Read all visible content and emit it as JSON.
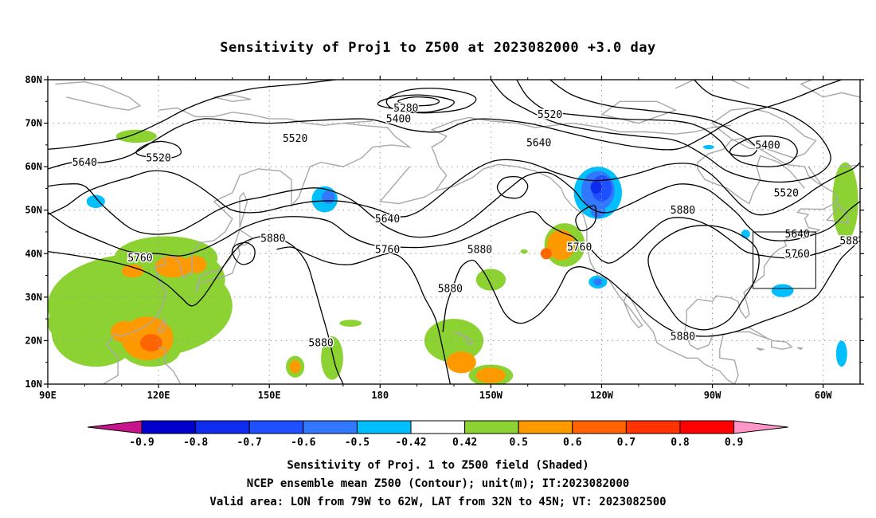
{
  "title": "Sensitivity of Proj1 to Z500 at 2023082000 +3.0 day",
  "map": {
    "lat_labels": [
      "80N",
      "70N",
      "60N",
      "50N",
      "40N",
      "30N",
      "20N",
      "10N"
    ],
    "lon_labels": [
      "90E",
      "120E",
      "150E",
      "180",
      "150W",
      "120W",
      "90W",
      "60W"
    ],
    "lon_range": [
      "90E",
      "50W"
    ],
    "lat_range": [
      "10N",
      "80N"
    ],
    "contour_color": "#000000",
    "coastline_color": "#a8a8a8",
    "grid_lines": "dotted",
    "valid_box": {
      "lon_from": "79W",
      "lon_to": "62W",
      "lat_from": "32N",
      "lat_to": "45N"
    },
    "contour_labels": [
      {
        "text": "5280",
        "lon": -173,
        "lat": 73.5
      },
      {
        "text": "5400",
        "lon": -175,
        "lat": 71
      },
      {
        "text": "5520",
        "lon": -134,
        "lat": 72
      },
      {
        "text": "5520",
        "lon": 157,
        "lat": 66.5
      },
      {
        "text": "5520",
        "lon": 120,
        "lat": 62
      },
      {
        "text": "5640",
        "lon": 100,
        "lat": 61
      },
      {
        "text": "5640",
        "lon": -137,
        "lat": 65.5
      },
      {
        "text": "5400",
        "lon": -75,
        "lat": 65
      },
      {
        "text": "5520",
        "lon": -70,
        "lat": 54
      },
      {
        "text": "5640",
        "lon": -67,
        "lat": 44.5
      },
      {
        "text": "5640",
        "lon": -178,
        "lat": 48
      },
      {
        "text": "5880",
        "lon": 151,
        "lat": 43.5
      },
      {
        "text": "5880",
        "lon": -98,
        "lat": 50
      },
      {
        "text": "5760",
        "lon": -178,
        "lat": 41
      },
      {
        "text": "5880",
        "lon": -153,
        "lat": 41
      },
      {
        "text": "5760",
        "lon": -126,
        "lat": 41.5
      },
      {
        "text": "5760",
        "lon": -67,
        "lat": 40
      },
      {
        "text": "5760",
        "lon": 115,
        "lat": 39
      },
      {
        "text": "5880",
        "lon": -161,
        "lat": 32
      },
      {
        "text": "5880",
        "lon": -98,
        "lat": 21
      },
      {
        "text": "5880",
        "lon": 164,
        "lat": 19.5
      },
      {
        "text": "588",
        "lon": -53,
        "lat": 43
      }
    ]
  },
  "shading": {
    "blobs": [
      {
        "lon": 103,
        "lat": 52,
        "rx": 2.5,
        "ry": 1.5,
        "level": "-0.42"
      },
      {
        "lon": 114,
        "lat": 67,
        "rx": 5.5,
        "ry": 1.5,
        "level": "0.42"
      },
      {
        "lon": 165,
        "lat": 52.5,
        "rx": 3.5,
        "ry": 3,
        "level": "-0.42"
      },
      {
        "lon": 166,
        "lat": 53,
        "rx": 1.8,
        "ry": 1.5,
        "level": "-0.5"
      },
      {
        "lon": -121,
        "lat": 54,
        "rx": 6.5,
        "ry": 6,
        "level": "-0.42"
      },
      {
        "lon": -121,
        "lat": 54.5,
        "rx": 4.5,
        "ry": 4.5,
        "level": "-0.5"
      },
      {
        "lon": -120,
        "lat": 55,
        "rx": 2.8,
        "ry": 3,
        "level": "-0.6"
      },
      {
        "lon": -121.5,
        "lat": 55.3,
        "rx": 1.5,
        "ry": 1.5,
        "level": "-0.7"
      },
      {
        "lon": -121,
        "lat": 49.8,
        "rx": 2,
        "ry": 1.5,
        "level": "-0.5"
      },
      {
        "lon": -130,
        "lat": 42,
        "rx": 5.5,
        "ry": 5,
        "level": "0.42"
      },
      {
        "lon": -131,
        "lat": 42,
        "rx": 3.8,
        "ry": 3.5,
        "level": "0.5"
      },
      {
        "lon": -135,
        "lat": 40,
        "rx": 1.5,
        "ry": 1.3,
        "level": "0.6"
      },
      {
        "lon": -121,
        "lat": 33.5,
        "rx": 2.5,
        "ry": 1.5,
        "level": "-0.42"
      },
      {
        "lon": -121,
        "lat": 33.5,
        "rx": 1.2,
        "ry": 0.8,
        "level": "-0.5"
      },
      {
        "lon": -150,
        "lat": 34,
        "rx": 4,
        "ry": 2.5,
        "level": "0.42"
      },
      {
        "lon": -150,
        "lat": 34,
        "rx": 4,
        "ry": 2.5,
        "level": "0.42"
      },
      {
        "lon": -71,
        "lat": 31.5,
        "rx": 3,
        "ry": 1.5,
        "level": "-0.42"
      },
      {
        "lon": -81,
        "lat": 44.5,
        "rx": 1.2,
        "ry": 1,
        "level": "-0.42"
      },
      {
        "lon": -91,
        "lat": 64.5,
        "rx": 1.5,
        "ry": 0.5,
        "level": "-0.42"
      },
      {
        "lon": -54,
        "lat": 52,
        "rx": 3.5,
        "ry": 9,
        "level": "0.42"
      },
      {
        "lon": -55,
        "lat": 17,
        "rx": 1.5,
        "ry": 3,
        "level": "-0.42"
      },
      {
        "lon": -160,
        "lat": 20,
        "rx": 8,
        "ry": 5,
        "level": "0.42"
      },
      {
        "lon": -158,
        "lat": 15,
        "rx": 4,
        "ry": 2.5,
        "level": "0.5"
      },
      {
        "lon": -150,
        "lat": 12,
        "rx": 6,
        "ry": 2.5,
        "level": "0.42"
      },
      {
        "lon": -150,
        "lat": 12,
        "rx": 4,
        "ry": 1.8,
        "level": "0.5"
      },
      {
        "lon": 157,
        "lat": 14,
        "rx": 2.5,
        "ry": 2.5,
        "level": "0.42"
      },
      {
        "lon": 157,
        "lat": 14,
        "rx": 1.5,
        "ry": 1.5,
        "level": "0.5"
      },
      {
        "lon": 167,
        "lat": 16,
        "rx": 3,
        "ry": 5,
        "level": "0.42"
      },
      {
        "lon": 172,
        "lat": 24,
        "rx": 3,
        "ry": 0.8,
        "level": "0.42"
      },
      {
        "lon": -141,
        "lat": 40.5,
        "rx": 1,
        "ry": 0.5,
        "level": "0.42"
      },
      {
        "lon": 115,
        "lat": 28,
        "rx": 25,
        "ry": 12,
        "level": "0.42"
      },
      {
        "lon": 103,
        "lat": 22,
        "rx": 12,
        "ry": 8,
        "level": "0.42"
      },
      {
        "lon": 122,
        "lat": 39,
        "rx": 14,
        "ry": 5,
        "level": "0.42"
      },
      {
        "lon": 126,
        "lat": 34,
        "rx": 12,
        "ry": 7,
        "level": "0.42"
      },
      {
        "lon": 118,
        "lat": 18,
        "rx": 8,
        "ry": 4,
        "level": "0.42"
      },
      {
        "lon": 93,
        "lat": 24,
        "rx": 3,
        "ry": 3,
        "level": "0.42"
      },
      {
        "lon": 117,
        "lat": 20.5,
        "rx": 7,
        "ry": 5,
        "level": "0.5"
      },
      {
        "lon": 111,
        "lat": 22,
        "rx": 4,
        "ry": 2.5,
        "level": "0.5"
      },
      {
        "lon": 124,
        "lat": 37,
        "rx": 5,
        "ry": 2.5,
        "level": "0.5"
      },
      {
        "lon": 130,
        "lat": 37.5,
        "rx": 3,
        "ry": 2,
        "level": "0.5"
      },
      {
        "lon": 118,
        "lat": 19.5,
        "rx": 3,
        "ry": 2,
        "level": "0.6"
      },
      {
        "lon": 113,
        "lat": 36,
        "rx": 3,
        "ry": 1.5,
        "level": "0.5"
      }
    ]
  },
  "colorbar": {
    "colors": [
      "#0000cc",
      "#0d2cf0",
      "#1e50ff",
      "#3278ff",
      "#00bfff",
      "#ffffff",
      "#8cd232",
      "#ff9900",
      "#ff6400",
      "#ff3200",
      "#ff0000"
    ],
    "lower_arrow_color": "#c8148c",
    "upper_arrow_color": "#ff96c8",
    "labels": [
      "-0.9",
      "-0.8",
      "-0.7",
      "-0.6",
      "-0.5",
      "-0.42",
      "0.42",
      "0.5",
      "0.6",
      "0.7",
      "0.8",
      "0.9"
    ]
  },
  "captions": [
    "Sensitivity of Proj. 1 to Z500 field (Shaded)",
    "NCEP ensemble mean Z500 (Contour); unit(m); IT:2023082000",
    "Valid area: LON from 79W to 62W, LAT from 32N to 45N; VT: 2023082500"
  ]
}
